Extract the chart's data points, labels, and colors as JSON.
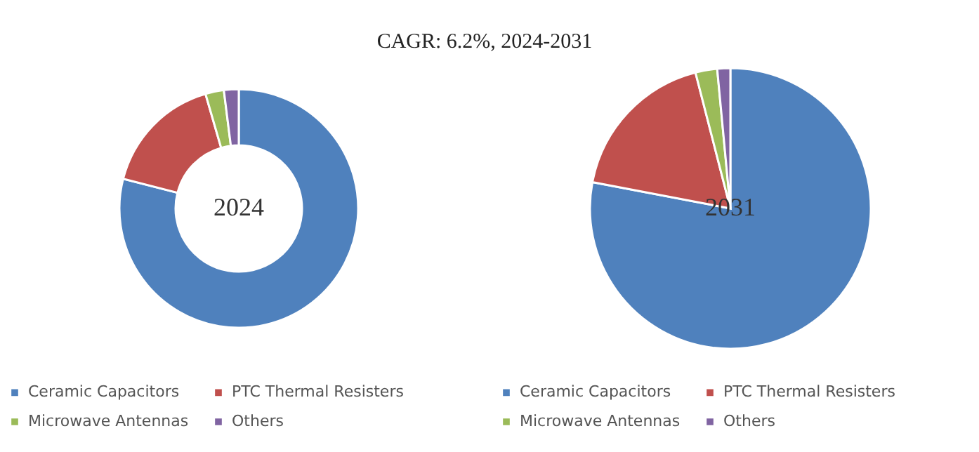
{
  "chart_data": [
    {
      "type": "donut",
      "title": "CAGR:   6.2%, 2024-2031",
      "categories": [
        "Ceramic Capacitors",
        "PTC Thermal Resisters",
        "Microwave Antennas",
        "Others"
      ],
      "values": [
        79,
        16.5,
        2.5,
        2
      ],
      "colors": [
        "#4f81bd",
        "#c0504d",
        "#9bbb59",
        "#8064a2"
      ],
      "annotations": [
        "2024"
      ],
      "legend": "bottom"
    },
    {
      "type": "pie",
      "categories": [
        "Ceramic Capacitors",
        "PTC Thermal Resisters",
        "Microwave Antennas",
        "Others"
      ],
      "values": [
        78,
        18,
        2.5,
        1.5
      ],
      "colors": [
        "#4f81bd",
        "#c0504d",
        "#9bbb59",
        "#8064a2"
      ],
      "annotations": [
        "2031"
      ],
      "legend": "bottom"
    }
  ]
}
